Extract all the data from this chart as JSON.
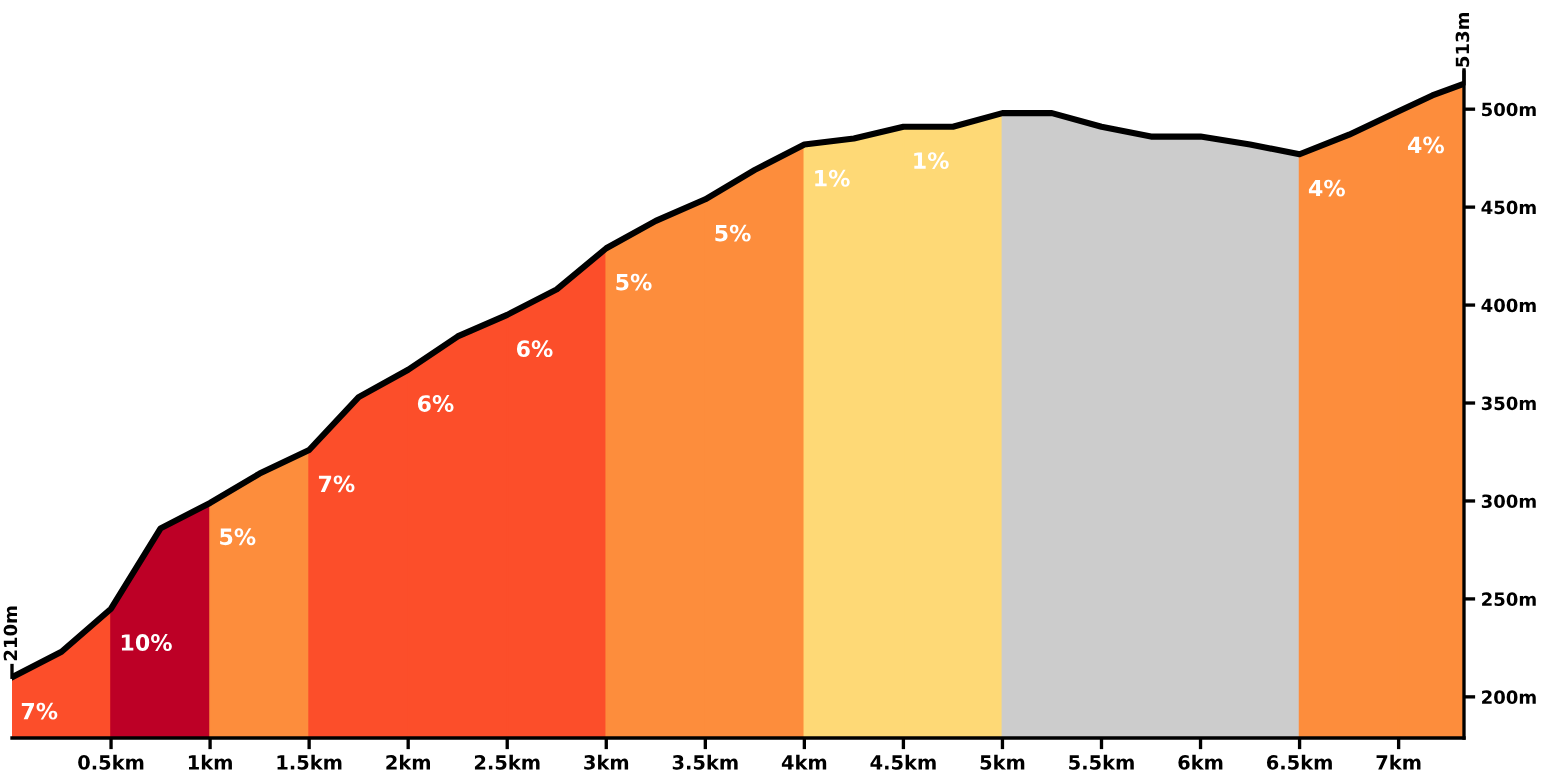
{
  "chart_data": {
    "type": "area",
    "xlim": [
      0,
      7.33
    ],
    "ylim": [
      179,
      520
    ],
    "xticks": [
      {
        "value": 0.5,
        "label": "0.5km"
      },
      {
        "value": 1,
        "label": "1km"
      },
      {
        "value": 1.5,
        "label": "1.5km"
      },
      {
        "value": 2,
        "label": "2km"
      },
      {
        "value": 2.5,
        "label": "2.5km"
      },
      {
        "value": 3,
        "label": "3km"
      },
      {
        "value": 3.5,
        "label": "3.5km"
      },
      {
        "value": 4,
        "label": "4km"
      },
      {
        "value": 4.5,
        "label": "4.5km"
      },
      {
        "value": 5,
        "label": "5km"
      },
      {
        "value": 5.5,
        "label": "5.5km"
      },
      {
        "value": 6,
        "label": "6km"
      },
      {
        "value": 6.5,
        "label": "6.5km"
      },
      {
        "value": 7,
        "label": "7km"
      }
    ],
    "yticks": [
      {
        "value": 200,
        "label": "200m"
      },
      {
        "value": 250,
        "label": "250m"
      },
      {
        "value": 300,
        "label": "300m"
      },
      {
        "value": 350,
        "label": "350m"
      },
      {
        "value": 400,
        "label": "400m"
      },
      {
        "value": 450,
        "label": "450m"
      },
      {
        "value": 500,
        "label": "500m"
      }
    ],
    "grid": false,
    "legend": false,
    "series": [
      {
        "name": "7%",
        "color": "#fc4e2a",
        "x": [
          0,
          0.25,
          0.5
        ],
        "values": [
          210,
          223,
          245
        ]
      },
      {
        "name": "10%",
        "color": "#bd0026",
        "x": [
          0.5,
          0.75,
          1
        ],
        "values": [
          245,
          286,
          299
        ]
      },
      {
        "name": "5%",
        "color": "#fd8d3c",
        "x": [
          1,
          1.25,
          1.5
        ],
        "values": [
          299,
          314,
          326
        ]
      },
      {
        "name": "7%",
        "color": "#fc4e2a",
        "x": [
          1.5,
          1.75,
          2
        ],
        "values": [
          326,
          353,
          367
        ]
      },
      {
        "name": "6%",
        "color": "#fc4e2a",
        "x": [
          2,
          2.25,
          2.5
        ],
        "values": [
          367,
          384,
          395
        ]
      },
      {
        "name": "6%",
        "color": "#fc4e2a",
        "x": [
          2.5,
          2.75,
          3
        ],
        "values": [
          395,
          408,
          429
        ]
      },
      {
        "name": "5%",
        "color": "#fd8d3c",
        "x": [
          3,
          3.25,
          3.5
        ],
        "values": [
          429,
          443,
          454
        ]
      },
      {
        "name": "5%",
        "color": "#fd8d3c",
        "x": [
          3.5,
          3.75,
          4
        ],
        "values": [
          454,
          469,
          482
        ]
      },
      {
        "name": "1%",
        "color": "#fed976",
        "x": [
          4,
          4.25,
          4.5
        ],
        "values": [
          482,
          485,
          491
        ]
      },
      {
        "name": "1%",
        "color": "#fed976",
        "x": [
          4.5,
          4.75,
          5
        ],
        "values": [
          491,
          491,
          498
        ]
      },
      {
        "color": "#cccccc",
        "x": [
          5,
          5.25,
          5.5,
          5.75,
          6,
          6.25,
          6.5
        ],
        "values": [
          498,
          498,
          491,
          486,
          486,
          482,
          477
        ]
      },
      {
        "name": "4%",
        "color": "#fd8d3c",
        "x": [
          6.5,
          6.75,
          7
        ],
        "values": [
          477,
          487,
          499
        ]
      },
      {
        "name": "4%",
        "color": "#fd8d3c",
        "x": [
          7,
          7.17,
          7.33
        ],
        "values": [
          499,
          507,
          513
        ]
      },
      {
        "type": "line",
        "color": "#000000",
        "x": [
          0,
          0.25,
          0.5,
          0.75,
          1,
          1.25,
          1.5,
          1.75,
          2,
          2.25,
          2.5,
          2.75,
          3,
          3.25,
          3.5,
          3.75,
          4,
          4.25,
          4.5,
          4.75,
          5,
          5.25,
          5.5,
          5.75,
          6,
          6.25,
          6.5,
          6.75,
          7,
          7.17,
          7.33
        ],
        "values": [
          210,
          223,
          245,
          286,
          299,
          314,
          326,
          353,
          367,
          384,
          395,
          408,
          429,
          443,
          454,
          469,
          482,
          485,
          491,
          491,
          498,
          498,
          491,
          486,
          486,
          482,
          477,
          487,
          499,
          507,
          513
        ]
      }
    ],
    "annotations": [
      {
        "text": "210m",
        "x": 0,
        "y": 210
      },
      {
        "text": "513m",
        "x": 7.33,
        "y": 513
      }
    ]
  }
}
